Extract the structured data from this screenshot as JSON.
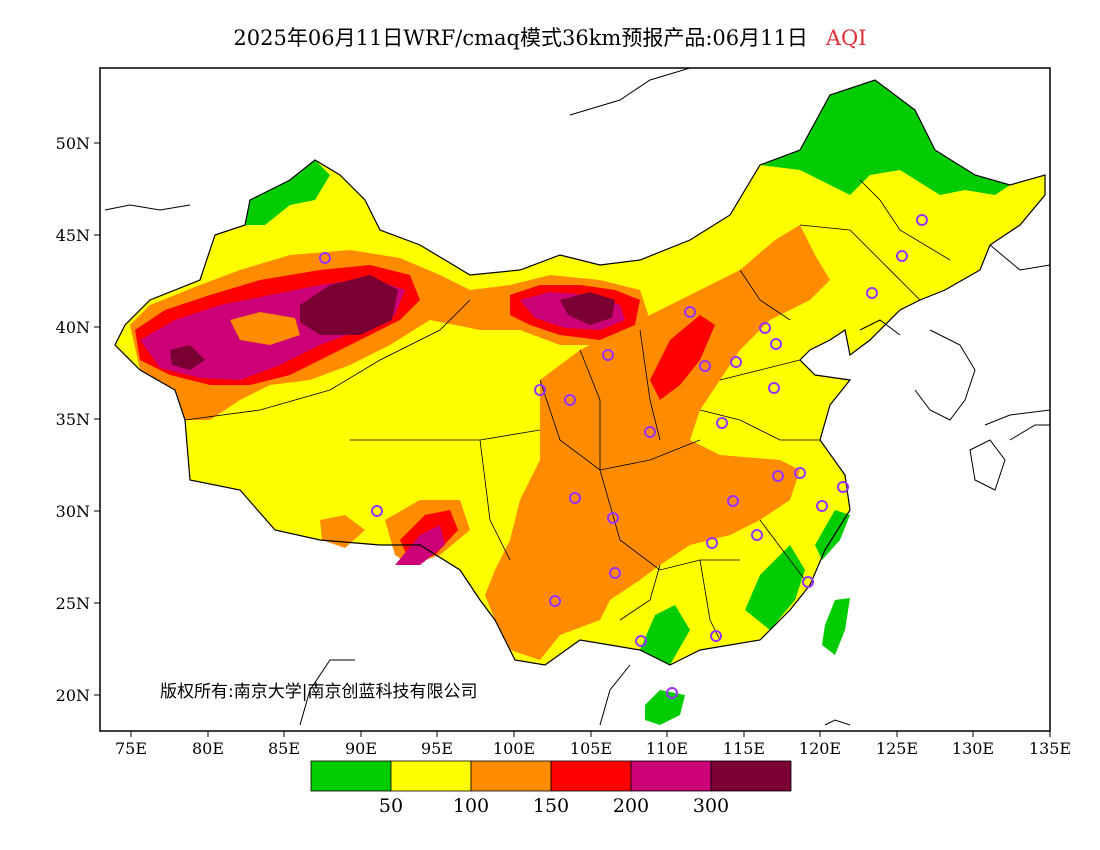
{
  "title": {
    "main": "2025年06月11日WRF/cmaq模式36km预报产品:06月11日",
    "variable": "AQI"
  },
  "axes": {
    "lat_ticks": [
      "50N",
      "45N",
      "40N",
      "35N",
      "30N",
      "25N",
      "20N"
    ],
    "lon_ticks": [
      "75E",
      "80E",
      "85E",
      "90E",
      "95E",
      "100E",
      "105E",
      "110E",
      "115E",
      "120E",
      "125E",
      "130E",
      "135E"
    ],
    "lon_range": [
      73,
      135
    ],
    "lat_range": [
      18,
      54
    ]
  },
  "copyright": "版权所有:南京大学|南京创蓝科技有限公司",
  "legend": {
    "colors": [
      "#00cc00",
      "#ffff00",
      "#ff8c00",
      "#ff0000",
      "#cc0077",
      "#7a0033"
    ],
    "labels": [
      "50",
      "100",
      "150",
      "200",
      "300"
    ]
  },
  "city_markers_color": "#9933ff"
}
